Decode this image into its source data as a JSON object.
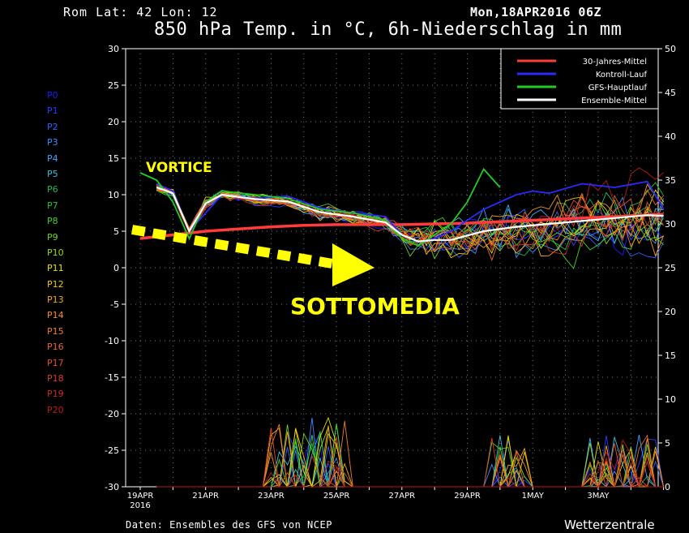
{
  "header": {
    "location": "Rom   Lat: 42 Lon: 12",
    "run": "Mon,18APR2016 06Z",
    "title": "850 hPa Temp. in °C, 6h-Niederschlag in mm"
  },
  "footer": {
    "source": "Daten: Ensembles des GFS von NCEP",
    "brand": "Wetterzentrale"
  },
  "annotations": {
    "vortice": "VORTICE",
    "sottomedia": "SOTTOMEDIA"
  },
  "members": [
    {
      "label": "P0",
      "color": "#1a1aff"
    },
    {
      "label": "P1",
      "color": "#2a3cff"
    },
    {
      "label": "P2",
      "color": "#2f63ff"
    },
    {
      "label": "P3",
      "color": "#3a8dff"
    },
    {
      "label": "P4",
      "color": "#3aa6ff"
    },
    {
      "label": "P5",
      "color": "#36c0e0"
    },
    {
      "label": "P6",
      "color": "#1fb85e"
    },
    {
      "label": "P7",
      "color": "#23c83a"
    },
    {
      "label": "P8",
      "color": "#43d21f"
    },
    {
      "label": "P9",
      "color": "#6fd41a"
    },
    {
      "label": "P10",
      "color": "#9fda12"
    },
    {
      "label": "P11",
      "color": "#e0e00a"
    },
    {
      "label": "P12",
      "color": "#f0c40a"
    },
    {
      "label": "P13",
      "color": "#f5a80f"
    },
    {
      "label": "P14",
      "color": "#f59020"
    },
    {
      "label": "P15",
      "color": "#f07c28"
    },
    {
      "label": "P16",
      "color": "#ea662c"
    },
    {
      "label": "P17",
      "color": "#e2502c"
    },
    {
      "label": "P18",
      "color": "#d83c28"
    },
    {
      "label": "P19",
      "color": "#cc2a22"
    },
    {
      "label": "P20",
      "color": "#c01818"
    }
  ],
  "chart_data": {
    "type": "line",
    "x_ticks": [
      "19APR",
      "21APR",
      "23APR",
      "25APR",
      "27APR",
      "29APR",
      "1MAY",
      "3MAY"
    ],
    "x_subtitle": "2016",
    "x_range_days": [
      0,
      16
    ],
    "y_left": {
      "ticks": [
        30,
        25,
        20,
        15,
        10,
        5,
        0,
        -5,
        -10,
        -15,
        -20,
        -25,
        -30
      ],
      "range": [
        -30,
        30
      ]
    },
    "y_right": {
      "ticks": [
        50,
        45,
        40,
        35,
        30,
        25,
        20,
        15,
        10,
        5,
        0
      ],
      "range": [
        0,
        50
      ]
    },
    "grid": true,
    "legend_position": "top-right",
    "legend": [
      {
        "name": "30-Jahres-Mittel",
        "color": "#ff3b3b"
      },
      {
        "name": "Kontroll-Lauf",
        "color": "#2a2aff"
      },
      {
        "name": "GFS-Hauptlauf",
        "color": "#22cc22"
      },
      {
        "name": "Ensemble-Mittel",
        "color": "#ffffff"
      }
    ],
    "series": [
      {
        "name": "30-Jahres-Mittel",
        "color": "#ff3b3b",
        "x": [
          0,
          1,
          2,
          3,
          4,
          5,
          6,
          7,
          8,
          9,
          10,
          11,
          12,
          13,
          14,
          15,
          16
        ],
        "y": [
          4.0,
          4.5,
          5.0,
          5.3,
          5.6,
          5.8,
          5.9,
          5.9,
          5.9,
          6.0,
          6.1,
          6.3,
          6.5,
          6.7,
          6.9,
          7.1,
          7.3
        ]
      },
      {
        "name": "Kontroll-Lauf",
        "color": "#2a2aff",
        "x": [
          0.5,
          1.0,
          1.5,
          2.5,
          3.5,
          4.5,
          5.5,
          6.5,
          7.5,
          8.0,
          8.5,
          9.0,
          9.5,
          10.5,
          11.5,
          12.0,
          12.5,
          13.5,
          14.5,
          15.5,
          16
        ],
        "y": [
          11.5,
          10.5,
          5,
          10,
          9.5,
          9.8,
          8.2,
          7.5,
          7,
          4.5,
          3.5,
          4.0,
          5,
          8,
          10,
          10.5,
          10.2,
          11.5,
          11,
          11.8,
          8
        ]
      },
      {
        "name": "GFS-Hauptlauf",
        "color": "#22cc22",
        "x": [
          0,
          0.5,
          1.0,
          1.5,
          2.0,
          2.5,
          3.5,
          4.5,
          5.5,
          6.5,
          7.5,
          8.0,
          8.5,
          9.0,
          9.5,
          10.0,
          10.5,
          11.0
        ],
        "y": [
          13,
          12,
          9,
          4,
          9,
          10.5,
          10,
          9.5,
          8,
          7.5,
          6.5,
          4,
          3,
          4.5,
          6,
          9,
          13.5,
          11
        ]
      },
      {
        "name": "Ensemble-Mittel",
        "color": "#ffffff",
        "x": [
          0.5,
          1.0,
          1.5,
          2.0,
          2.5,
          3.5,
          4.5,
          5.5,
          6.5,
          7.5,
          8.0,
          8.5,
          9.0,
          9.5,
          10.5,
          11.5,
          12.5,
          13.5,
          14.5,
          15.5,
          16
        ],
        "y": [
          11,
          10.2,
          5,
          8.8,
          10,
          9.4,
          9.1,
          7.6,
          7,
          6.2,
          4.5,
          3.6,
          3.8,
          3.8,
          5,
          5.6,
          6,
          6.4,
          6.8,
          7.2,
          7.1
        ]
      }
    ]
  }
}
